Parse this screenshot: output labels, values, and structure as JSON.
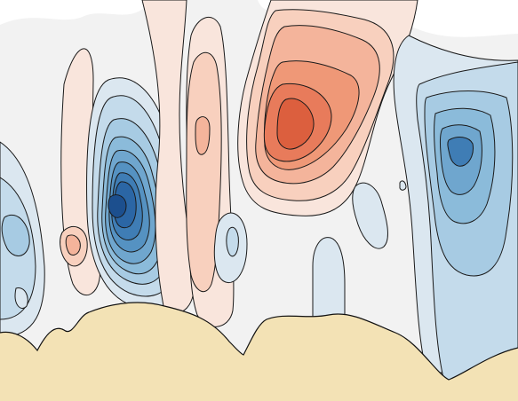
{
  "colors": {
    "background": "#ffffff",
    "neutral_fill": "#f2f2f2",
    "terrain_fill": "#f3e2b5",
    "contour_line": "#1a1a1a",
    "blue_levels": [
      "#dbe7f0",
      "#c4dbeb",
      "#a7cbe3",
      "#8bbbda",
      "#6fa6ce",
      "#5592c2",
      "#3f7db5",
      "#2b66a5",
      "#1c4f8e"
    ],
    "red_levels": [
      "#f9e5dc",
      "#f8d0be",
      "#f4b49b",
      "#ef9877",
      "#e87b5b",
      "#dc5f3e"
    ]
  }
}
